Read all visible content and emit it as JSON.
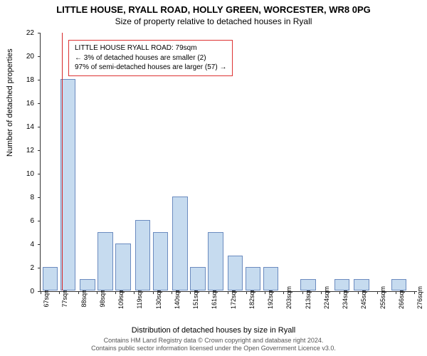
{
  "title": "LITTLE HOUSE, RYALL ROAD, HOLLY GREEN, WORCESTER, WR8 0PG",
  "subtitle": "Size of property relative to detached houses in Ryall",
  "ylabel": "Number of detached properties",
  "xlabel": "Distribution of detached houses by size in Ryall",
  "chart": {
    "type": "bar",
    "ylim": [
      0,
      22
    ],
    "ytick_step": 2,
    "bar_color": "#c6dbef",
    "bar_border": "#6b8bbf",
    "marker_color": "#d62728",
    "marker_x": 79,
    "background_color": "#ffffff",
    "axis_color": "#333333",
    "x_start": 67,
    "x_end": 279,
    "x_tick_start": 67,
    "x_tick_step": 10.5,
    "x_tick_labels": [
      "67sqm",
      "77sqm",
      "88sqm",
      "98sqm",
      "109sqm",
      "119sqm",
      "130sqm",
      "140sqm",
      "151sqm",
      "161sqm",
      "172sqm",
      "182sqm",
      "192sqm",
      "203sqm",
      "213sqm",
      "224sqm",
      "234sqm",
      "245sqm",
      "255sqm",
      "266sqm",
      "276sqm"
    ],
    "bars": [
      {
        "x": 68,
        "w": 9,
        "v": 2
      },
      {
        "x": 78,
        "w": 9,
        "v": 18
      },
      {
        "x": 89,
        "w": 9,
        "v": 1
      },
      {
        "x": 99,
        "w": 9,
        "v": 5
      },
      {
        "x": 109,
        "w": 9,
        "v": 4
      },
      {
        "x": 120,
        "w": 9,
        "v": 6
      },
      {
        "x": 130,
        "w": 9,
        "v": 5
      },
      {
        "x": 141,
        "w": 9,
        "v": 8
      },
      {
        "x": 151,
        "w": 9,
        "v": 2
      },
      {
        "x": 161,
        "w": 9,
        "v": 5
      },
      {
        "x": 172,
        "w": 9,
        "v": 3
      },
      {
        "x": 182,
        "w": 9,
        "v": 2
      },
      {
        "x": 192,
        "w": 9,
        "v": 2
      },
      {
        "x": 202,
        "w": 9,
        "v": 0
      },
      {
        "x": 213,
        "w": 9,
        "v": 1
      },
      {
        "x": 232,
        "w": 9,
        "v": 1
      },
      {
        "x": 243,
        "w": 9,
        "v": 1
      },
      {
        "x": 264,
        "w": 9,
        "v": 1
      }
    ]
  },
  "info_box": {
    "line1": "LITTLE HOUSE RYALL ROAD: 79sqm",
    "line2": "← 3% of detached houses are smaller (2)",
    "line3": "97% of semi-detached houses are larger (57) →"
  },
  "attribution": {
    "line1": "Contains HM Land Registry data © Crown copyright and database right 2024.",
    "line2": "Contains public sector information licensed under the Open Government Licence v3.0."
  }
}
